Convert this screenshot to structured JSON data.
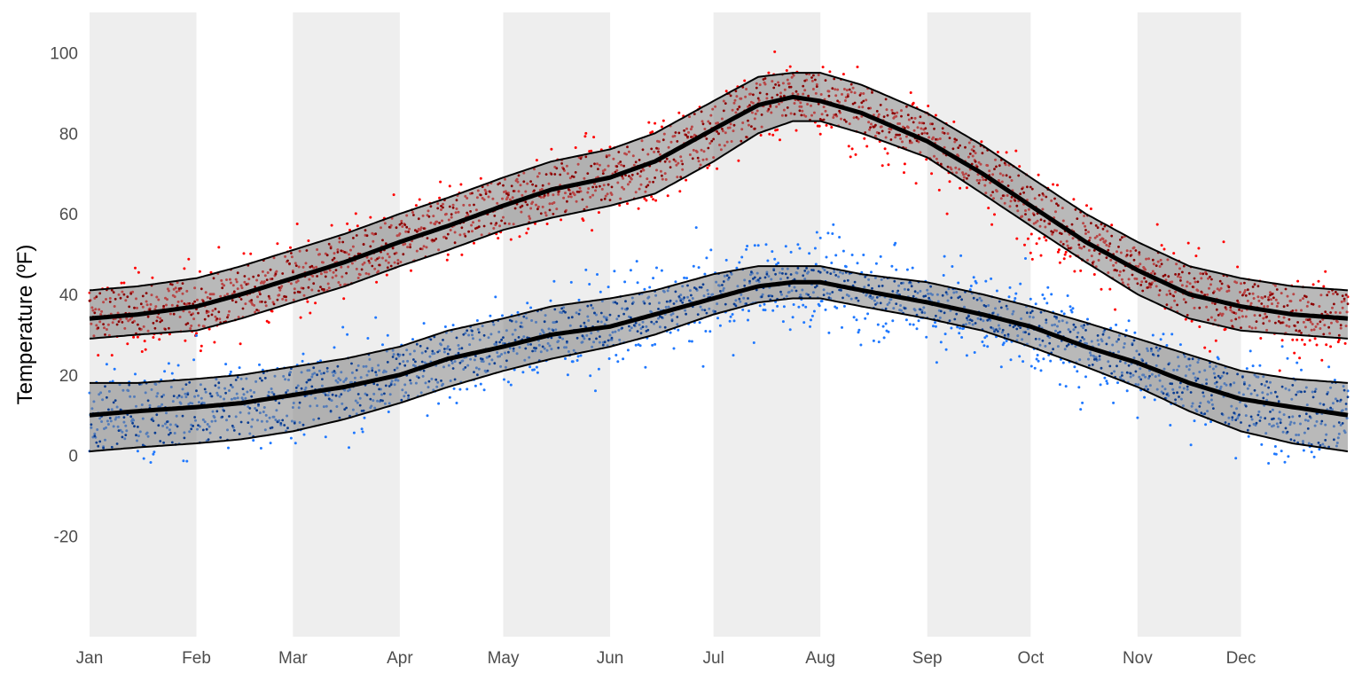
{
  "chart_data": {
    "type": "scatter",
    "title": "",
    "xlabel": "",
    "ylabel": "Temperature (ºF)",
    "xlim": [
      1,
      366
    ],
    "ylim": [
      -45,
      110
    ],
    "grid": false,
    "x_ticks": [
      {
        "label": "Jan",
        "day": 1
      },
      {
        "label": "Feb",
        "day": 32
      },
      {
        "label": "Mar",
        "day": 60
      },
      {
        "label": "Apr",
        "day": 91
      },
      {
        "label": "May",
        "day": 121
      },
      {
        "label": "Jun",
        "day": 152
      },
      {
        "label": "Jul",
        "day": 182
      },
      {
        "label": "Aug",
        "day": 213
      },
      {
        "label": "Sep",
        "day": 244
      },
      {
        "label": "Oct",
        "day": 274
      },
      {
        "label": "Nov",
        "day": 305
      },
      {
        "label": "Dec",
        "day": 335
      }
    ],
    "y_ticks": [
      -20,
      0,
      20,
      40,
      60,
      80,
      100
    ],
    "shaded_months": [
      {
        "start_day": 1,
        "end_day": 32
      },
      {
        "start_day": 60,
        "end_day": 91
      },
      {
        "start_day": 121,
        "end_day": 152
      },
      {
        "start_day": 182,
        "end_day": 213
      },
      {
        "start_day": 244,
        "end_day": 274
      },
      {
        "start_day": 305,
        "end_day": 335
      }
    ],
    "series": [
      {
        "color": "#ff0000",
        "band_color": "#8b0000",
        "band_fill": "#7f7f7f",
        "day": [
          1,
          15,
          32,
          45,
          60,
          75,
          91,
          105,
          121,
          135,
          152,
          165,
          182,
          195,
          205,
          213,
          225,
          244,
          260,
          274,
          290,
          305,
          320,
          335,
          350,
          366
        ],
        "mean": [
          34,
          35,
          37,
          40,
          44,
          48,
          53,
          57,
          62,
          66,
          69,
          73,
          81,
          87,
          89,
          88,
          85,
          78,
          70,
          62,
          53,
          46,
          40,
          37,
          35,
          34
        ],
        "upper": [
          41,
          42,
          44,
          47,
          51,
          55,
          60,
          64,
          69,
          73,
          76,
          80,
          88,
          94,
          95,
          95,
          92,
          85,
          77,
          69,
          60,
          53,
          47,
          44,
          42,
          41
        ],
        "lower": [
          29,
          30,
          31,
          34,
          38,
          42,
          47,
          51,
          56,
          59,
          62,
          65,
          73,
          80,
          83,
          83,
          80,
          74,
          65,
          57,
          48,
          40,
          34,
          31,
          30,
          29
        ],
        "scatter_spread": 9
      },
      {
        "color": "#1f78ff",
        "band_color": "#0b3d91",
        "band_fill": "#7f7f7f",
        "day": [
          1,
          15,
          32,
          45,
          60,
          75,
          91,
          105,
          121,
          135,
          152,
          165,
          182,
          195,
          205,
          213,
          225,
          244,
          260,
          274,
          290,
          305,
          320,
          335,
          350,
          366
        ],
        "mean": [
          10,
          11,
          12,
          13,
          15,
          17,
          20,
          24,
          27,
          30,
          32,
          35,
          39,
          42,
          43,
          43,
          41,
          38,
          35,
          32,
          27,
          23,
          18,
          14,
          12,
          10
        ],
        "upper": [
          18,
          18,
          19,
          20,
          22,
          24,
          27,
          31,
          34,
          37,
          39,
          41,
          45,
          47,
          47,
          47,
          45,
          43,
          40,
          37,
          33,
          29,
          25,
          21,
          19,
          18
        ],
        "lower": [
          1,
          2,
          3,
          4,
          6,
          9,
          13,
          17,
          21,
          24,
          27,
          30,
          35,
          38,
          39,
          39,
          37,
          34,
          31,
          27,
          22,
          17,
          11,
          6,
          3,
          1
        ],
        "scatter_spread": 11
      }
    ]
  }
}
